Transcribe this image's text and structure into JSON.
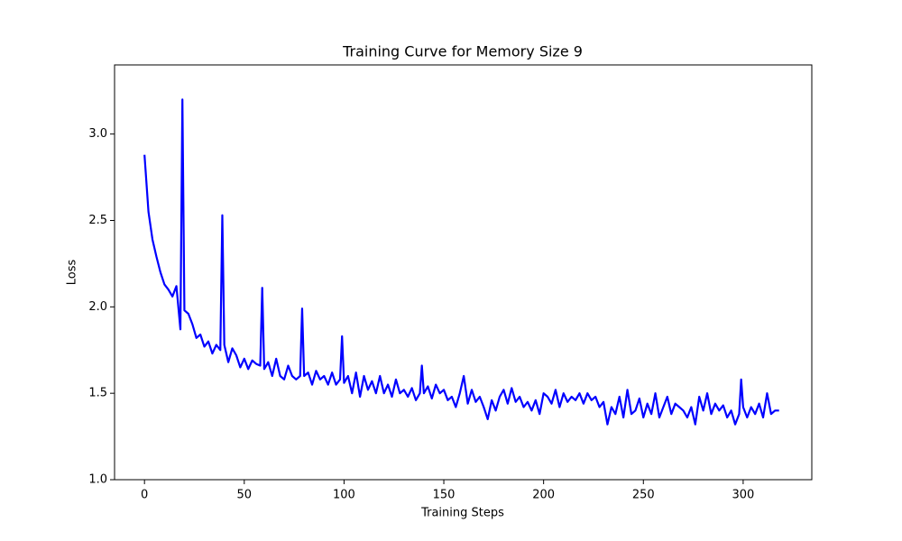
{
  "chart_data": {
    "type": "line",
    "title": "Training Curve for Memory Size 9",
    "xlabel": "Training Steps",
    "ylabel": "Loss",
    "xlim": [
      -15,
      334.4
    ],
    "ylim": [
      1.0,
      3.4
    ],
    "xticks": [
      0,
      50,
      100,
      150,
      200,
      250,
      300
    ],
    "yticks": [
      {
        "value": 1,
        "label": "1.0"
      },
      1.5,
      {
        "value": 2,
        "label": "2.0"
      },
      2.5,
      {
        "value": 3,
        "label": "3.0"
      }
    ],
    "x": [
      0,
      2,
      4,
      6,
      8,
      10,
      12,
      14,
      16,
      18,
      19,
      20,
      22,
      24,
      26,
      28,
      30,
      32,
      34,
      36,
      38,
      39,
      40,
      42,
      44,
      46,
      48,
      50,
      52,
      54,
      56,
      58,
      59,
      60,
      62,
      64,
      66,
      68,
      70,
      72,
      74,
      76,
      78,
      79,
      80,
      82,
      84,
      86,
      88,
      90,
      92,
      94,
      96,
      98,
      99,
      100,
      102,
      104,
      106,
      108,
      110,
      112,
      114,
      116,
      118,
      120,
      122,
      124,
      126,
      128,
      130,
      132,
      134,
      136,
      138,
      139,
      140,
      142,
      144,
      146,
      148,
      150,
      152,
      154,
      156,
      158,
      160,
      162,
      164,
      166,
      168,
      170,
      172,
      174,
      176,
      178,
      180,
      182,
      184,
      186,
      188,
      190,
      192,
      194,
      196,
      198,
      200,
      202,
      204,
      206,
      208,
      210,
      212,
      214,
      216,
      218,
      220,
      222,
      224,
      226,
      228,
      230,
      232,
      234,
      236,
      238,
      240,
      242,
      244,
      246,
      248,
      250,
      252,
      254,
      256,
      258,
      260,
      262,
      264,
      266,
      268,
      270,
      272,
      274,
      276,
      278,
      280,
      282,
      284,
      286,
      288,
      290,
      292,
      294,
      296,
      298,
      299,
      300,
      302,
      304,
      306,
      308,
      310,
      312,
      314,
      316,
      318
    ],
    "series": [
      {
        "color": "#0000ff",
        "values": [
          2.88,
          2.55,
          2.39,
          2.29,
          2.2,
          2.13,
          2.1,
          2.06,
          2.12,
          1.87,
          3.2,
          1.98,
          1.96,
          1.9,
          1.82,
          1.84,
          1.77,
          1.8,
          1.73,
          1.78,
          1.75,
          2.53,
          1.78,
          1.68,
          1.76,
          1.72,
          1.65,
          1.7,
          1.64,
          1.69,
          1.67,
          1.66,
          2.11,
          1.64,
          1.68,
          1.6,
          1.7,
          1.6,
          1.58,
          1.66,
          1.6,
          1.58,
          1.6,
          1.99,
          1.6,
          1.62,
          1.55,
          1.63,
          1.58,
          1.6,
          1.55,
          1.62,
          1.55,
          1.58,
          1.83,
          1.56,
          1.6,
          1.5,
          1.62,
          1.48,
          1.6,
          1.52,
          1.57,
          1.5,
          1.6,
          1.5,
          1.55,
          1.48,
          1.58,
          1.5,
          1.52,
          1.48,
          1.53,
          1.46,
          1.5,
          1.66,
          1.5,
          1.54,
          1.47,
          1.55,
          1.5,
          1.52,
          1.46,
          1.48,
          1.42,
          1.5,
          1.6,
          1.44,
          1.52,
          1.45,
          1.48,
          1.42,
          1.35,
          1.46,
          1.4,
          1.48,
          1.52,
          1.44,
          1.53,
          1.45,
          1.48,
          1.42,
          1.45,
          1.4,
          1.46,
          1.38,
          1.5,
          1.48,
          1.44,
          1.52,
          1.42,
          1.5,
          1.45,
          1.48,
          1.46,
          1.5,
          1.44,
          1.5,
          1.46,
          1.48,
          1.42,
          1.45,
          1.32,
          1.42,
          1.38,
          1.48,
          1.36,
          1.52,
          1.38,
          1.4,
          1.47,
          1.36,
          1.44,
          1.38,
          1.5,
          1.36,
          1.42,
          1.48,
          1.38,
          1.44,
          1.42,
          1.4,
          1.36,
          1.42,
          1.32,
          1.48,
          1.4,
          1.5,
          1.38,
          1.44,
          1.4,
          1.43,
          1.36,
          1.4,
          1.32,
          1.38,
          1.58,
          1.42,
          1.36,
          1.42,
          1.38,
          1.44,
          1.36,
          1.5,
          1.38,
          1.4,
          1.4
        ]
      }
    ]
  }
}
